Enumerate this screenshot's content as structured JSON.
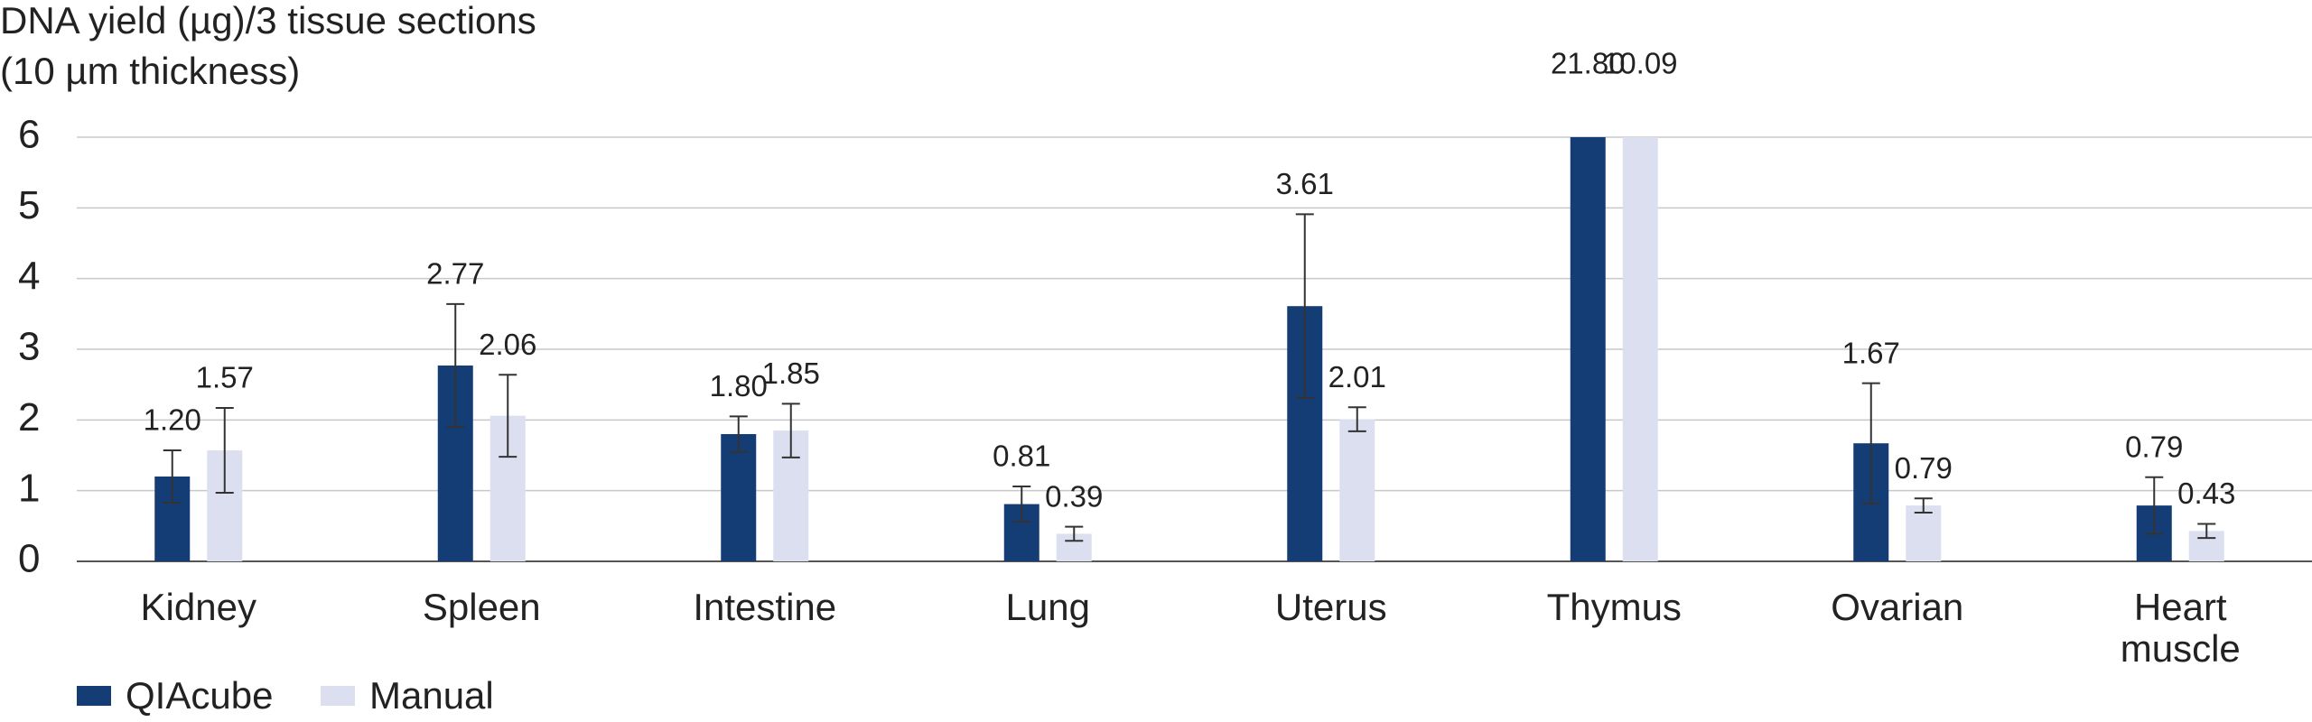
{
  "chart_data": {
    "type": "bar",
    "y_label": [
      "DNA yield (µg)/3 tissue sections",
      "(10 µm thickness)"
    ],
    "categories": [
      "Kidney",
      "Spleen",
      "Intestine",
      "Lung",
      "Uterus",
      "Thymus",
      "Ovarian",
      "Heart muscle"
    ],
    "series": [
      {
        "name": "QIAcube",
        "color": "#143d75",
        "values": [
          1.2,
          2.77,
          1.8,
          0.81,
          3.61,
          21.8,
          1.67,
          0.79
        ],
        "value_labels": [
          "1.20",
          "2.77",
          "1.80",
          "0.81",
          "3.61",
          "21.80",
          "1.67",
          "0.79"
        ],
        "errors": [
          0.37,
          0.87,
          0.25,
          0.25,
          1.3,
          null,
          0.85,
          0.4
        ]
      },
      {
        "name": "Manual",
        "color": "#dcdff0",
        "values": [
          1.57,
          2.06,
          1.85,
          0.39,
          2.01,
          10.09,
          0.79,
          0.43
        ],
        "value_labels": [
          "1.57",
          "2.06",
          "1.85",
          "0.39",
          "2.01",
          "10.09",
          "0.79",
          "0.43"
        ],
        "errors": [
          0.6,
          0.58,
          0.38,
          0.1,
          0.17,
          null,
          0.1,
          0.1
        ]
      }
    ],
    "ylim": [
      0,
      6
    ],
    "yticks": [
      0,
      1,
      2,
      3,
      4,
      5,
      6
    ],
    "grid": true,
    "legend": "bottom-left"
  }
}
